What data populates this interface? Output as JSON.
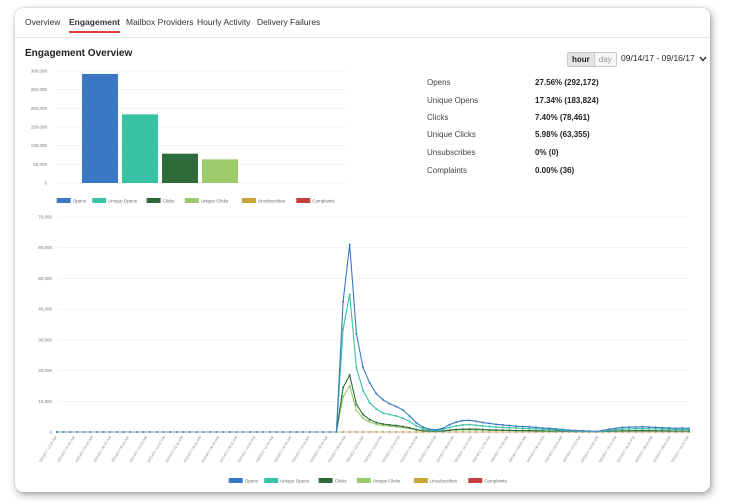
{
  "tabs": [
    "Overview",
    "Engagement",
    "Mailbox Providers",
    "Hourly Activity",
    "Delivery Failures"
  ],
  "active_tab": "Engagement",
  "page_title": "Engagement Overview",
  "toggle": {
    "hour": "hour",
    "day": "day"
  },
  "date_range": "09/14/17 - 09/16/17",
  "stats": [
    {
      "label": "Opens",
      "value": "27.56% (292,172)"
    },
    {
      "label": "Unique Opens",
      "value": "17.34% (183,824)"
    },
    {
      "label": "Clicks",
      "value": "7.40% (78,461)"
    },
    {
      "label": "Unique Clicks",
      "value": "5.98% (63,355)"
    },
    {
      "label": "Unsubscribes",
      "value": "0% (0)"
    },
    {
      "label": "Complaints",
      "value": "0.00% (36)"
    }
  ],
  "icons": {
    "date_dropdown": "chevron-down-icon"
  },
  "chart_data": [
    {
      "type": "bar",
      "categories": [
        "Opens",
        "Unique Opens",
        "Clicks",
        "Unique Clicks",
        "Unsubscribes",
        "Complaints"
      ],
      "values": [
        292172,
        183824,
        78461,
        63355,
        0,
        36
      ],
      "colors": [
        "#3a78c3",
        "#38c3a4",
        "#2e6b3a",
        "#9cc96b",
        "#c9a33a",
        "#c63f3f"
      ],
      "ylim": [
        0,
        300000
      ],
      "yticks": [
        "0",
        "50,000",
        "100,000",
        "150,000",
        "200,000",
        "250,000",
        "300,000"
      ],
      "legend": "bottom"
    },
    {
      "type": "line",
      "ylim": [
        0,
        70000
      ],
      "yticks": [
        "0",
        "10,000",
        "20,000",
        "30,000",
        "40,000",
        "50,000",
        "60,000",
        "70,000"
      ],
      "xticks": [
        "09/14/17 12:00 AM",
        "09/14/17 02:00 AM",
        "09/14/17 04:00 AM",
        "09/14/17 06:00 AM",
        "09/14/17 08:00 AM",
        "09/14/17 10:00 AM",
        "09/14/17 12:00 PM",
        "09/14/17 02:00 PM",
        "09/14/17 04:00 PM",
        "09/14/17 06:00 PM",
        "09/14/17 08:00 PM",
        "09/14/17 10:00 PM",
        "09/15/17 12:00 AM",
        "09/15/17 02:00 AM",
        "09/15/17 04:00 AM",
        "09/15/17 06:00 AM",
        "09/15/17 08:00 AM",
        "09/15/17 10:00 AM",
        "09/15/17 12:00 PM",
        "09/15/17 02:00 PM",
        "09/15/17 04:00 PM",
        "09/15/17 06:00 PM",
        "09/15/17 08:00 PM",
        "09/15/17 10:00 PM",
        "09/16/17 12:00 AM",
        "09/16/17 02:00 AM",
        "09/16/17 04:00 AM",
        "09/16/17 06:00 AM",
        "09/16/17 08:00 AM",
        "09/16/17 10:00 AM",
        "09/16/17 12:00 PM",
        "09/16/17 02:00 PM",
        "09/16/17 04:00 PM",
        "09/16/17 06:00 PM",
        "09/16/17 08:00 PM",
        "09/16/17 10:00 PM"
      ],
      "legend": "bottom",
      "series": [
        {
          "name": "Opens",
          "color": "#3a78c3",
          "values": [
            0,
            0,
            0,
            0,
            0,
            0,
            0,
            0,
            0,
            0,
            0,
            0,
            0,
            0,
            0,
            0,
            0,
            0,
            0,
            0,
            0,
            0,
            0,
            0,
            0,
            0,
            0,
            0,
            0,
            0,
            0,
            0,
            0,
            0,
            0,
            0,
            0,
            0,
            0,
            0,
            0,
            0,
            0,
            42500,
            61000,
            32000,
            21000,
            16000,
            12500,
            10500,
            9200,
            8300,
            7200,
            5200,
            3000,
            1600,
            900,
            700,
            1200,
            2400,
            3200,
            3700,
            3800,
            3500,
            3100,
            2800,
            2500,
            2300,
            2100,
            1900,
            1800,
            1700,
            1500,
            1300,
            1200,
            1000,
            800,
            600,
            500,
            400,
            300,
            200,
            500,
            900,
            1200,
            1500,
            1600,
            1600,
            1700,
            1600,
            1500,
            1400,
            1300,
            1200,
            1300,
            1200
          ]
        },
        {
          "name": "Unique Opens",
          "color": "#38c3a4",
          "values": [
            0,
            0,
            0,
            0,
            0,
            0,
            0,
            0,
            0,
            0,
            0,
            0,
            0,
            0,
            0,
            0,
            0,
            0,
            0,
            0,
            0,
            0,
            0,
            0,
            0,
            0,
            0,
            0,
            0,
            0,
            0,
            0,
            0,
            0,
            0,
            0,
            0,
            0,
            0,
            0,
            0,
            0,
            0,
            33500,
            44800,
            21000,
            13500,
            9500,
            7500,
            6200,
            5700,
            5200,
            4500,
            3500,
            2000,
            1100,
            600,
            500,
            800,
            1500,
            2000,
            2300,
            2400,
            2200,
            2000,
            1800,
            1600,
            1500,
            1400,
            1300,
            1200,
            1100,
            1000,
            900,
            800,
            700,
            550,
            450,
            350,
            280,
            220,
            150,
            350,
            600,
            800,
            950,
            1000,
            1050,
            1100,
            1050,
            1000,
            950,
            900,
            850,
            850,
            800
          ]
        },
        {
          "name": "Clicks",
          "color": "#2e6b3a",
          "values": [
            0,
            0,
            0,
            0,
            0,
            0,
            0,
            0,
            0,
            0,
            0,
            0,
            0,
            0,
            0,
            0,
            0,
            0,
            0,
            0,
            0,
            0,
            0,
            0,
            0,
            0,
            0,
            0,
            0,
            0,
            0,
            0,
            0,
            0,
            0,
            0,
            0,
            0,
            0,
            0,
            0,
            0,
            0,
            14500,
            18500,
            9000,
            5700,
            4000,
            3100,
            2600,
            2300,
            2100,
            1800,
            1400,
            800,
            450,
            250,
            200,
            300,
            600,
            800,
            900,
            950,
            900,
            800,
            700,
            650,
            600,
            550,
            500,
            480,
            450,
            400,
            350,
            300,
            280,
            220,
            180,
            140,
            110,
            90,
            60,
            140,
            240,
            320,
            380,
            400,
            420,
            440,
            420,
            400,
            380,
            360,
            340,
            340,
            320
          ]
        },
        {
          "name": "Unique Clicks",
          "color": "#9cc96b",
          "values": [
            0,
            0,
            0,
            0,
            0,
            0,
            0,
            0,
            0,
            0,
            0,
            0,
            0,
            0,
            0,
            0,
            0,
            0,
            0,
            0,
            0,
            0,
            0,
            0,
            0,
            0,
            0,
            0,
            0,
            0,
            0,
            0,
            0,
            0,
            0,
            0,
            0,
            0,
            0,
            0,
            0,
            0,
            0,
            11500,
            15000,
            7000,
            4500,
            3200,
            2500,
            2100,
            1900,
            1700,
            1450,
            1100,
            650,
            350,
            200,
            160,
            250,
            480,
            650,
            720,
            760,
            720,
            640,
            560,
            520,
            480,
            440,
            400,
            380,
            360,
            320,
            280,
            240,
            220,
            180,
            140,
            110,
            90,
            70,
            50,
            110,
            190,
            260,
            300,
            320,
            340,
            350,
            340,
            320,
            300,
            290,
            270,
            270,
            260
          ]
        },
        {
          "name": "Unsubscribes",
          "color": "#c9a33a",
          "values": [
            0,
            0,
            0,
            0,
            0,
            0,
            0,
            0,
            0,
            0,
            0,
            0,
            0,
            0,
            0,
            0,
            0,
            0,
            0,
            0,
            0,
            0,
            0,
            0,
            0,
            0,
            0,
            0,
            0,
            0,
            0,
            0,
            0,
            0,
            0,
            0,
            0,
            0,
            0,
            0,
            0,
            0,
            0,
            0,
            0,
            0,
            0,
            0,
            0,
            0,
            0,
            0,
            0,
            0,
            0,
            0,
            0,
            0,
            0,
            0,
            0,
            0,
            0,
            0,
            0,
            0,
            0,
            0,
            0,
            0,
            0,
            0,
            0,
            0,
            0,
            0,
            0,
            0,
            0,
            0,
            0,
            0,
            0,
            0,
            0,
            0,
            0,
            0,
            0,
            0,
            0,
            0,
            0,
            0,
            0,
            0
          ]
        },
        {
          "name": "Complaints",
          "color": "#c63f3f",
          "values": [
            0,
            0,
            0,
            0,
            0,
            0,
            0,
            0,
            0,
            0,
            0,
            0,
            0,
            0,
            0,
            0,
            0,
            0,
            0,
            0,
            0,
            0,
            0,
            0,
            0,
            0,
            0,
            0,
            0,
            0,
            0,
            0,
            0,
            0,
            0,
            0,
            0,
            0,
            0,
            0,
            0,
            0,
            0,
            2,
            6,
            4,
            3,
            2,
            2,
            1,
            1,
            1,
            1,
            1,
            0,
            0,
            0,
            0,
            0,
            1,
            1,
            1,
            1,
            0,
            0,
            0,
            0,
            0,
            0,
            0,
            0,
            0,
            0,
            0,
            0,
            0,
            0,
            0,
            0,
            0,
            0,
            0,
            0,
            0,
            0,
            0,
            0,
            0,
            0,
            0,
            0,
            0,
            0,
            0,
            0,
            0
          ]
        }
      ]
    }
  ]
}
